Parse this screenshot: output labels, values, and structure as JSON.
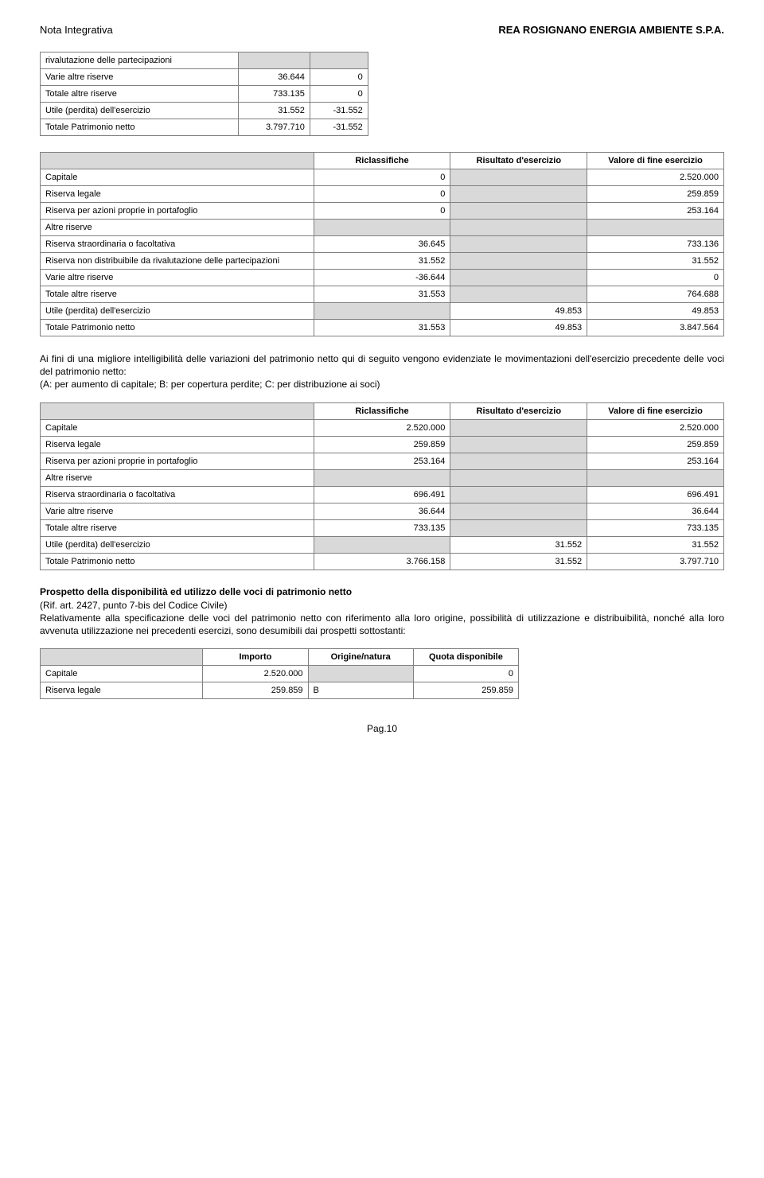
{
  "header": {
    "left": "Nota Integrativa",
    "right": "REA ROSIGNANO ENERGIA AMBIENTE S.P.A."
  },
  "table1": {
    "rows": [
      {
        "label": "rivalutazione delle partecipazioni",
        "c1": "",
        "c2": "",
        "grey1": true,
        "grey2": true
      },
      {
        "label": "Varie altre riserve",
        "c1": "36.644",
        "c2": "0"
      },
      {
        "label": "Totale altre riserve",
        "c1": "733.135",
        "c2": "0"
      },
      {
        "label": "Utile (perdita) dell'esercizio",
        "c1": "31.552",
        "c2": "-31.552"
      },
      {
        "label": "Totale Patrimonio netto",
        "c1": "3.797.710",
        "c2": "-31.552"
      }
    ]
  },
  "table2": {
    "headers": {
      "h1": "Riclassifiche",
      "h2": "Risultato d'esercizio",
      "h3": "Valore di fine esercizio"
    },
    "rows": [
      {
        "label": "Capitale",
        "c1": "0",
        "c2": "",
        "c3": "2.520.000",
        "grey2": true
      },
      {
        "label": "Riserva legale",
        "c1": "0",
        "c2": "",
        "c3": "259.859",
        "grey2": true
      },
      {
        "label": "Riserva per azioni proprie in portafoglio",
        "c1": "0",
        "c2": "",
        "c3": "253.164",
        "grey2": true
      },
      {
        "label": "Altre riserve",
        "c1": "",
        "c2": "",
        "c3": "",
        "grey1": true,
        "grey2": true,
        "grey3": true
      },
      {
        "label": "Riserva straordinaria o facoltativa",
        "c1": "36.645",
        "c2": "",
        "c3": "733.136",
        "grey2": true
      },
      {
        "label": "Riserva non distribuibile da rivalutazione delle partecipazioni",
        "c1": "31.552",
        "c2": "",
        "c3": "31.552",
        "grey2": true
      },
      {
        "label": "Varie altre riserve",
        "c1": "-36.644",
        "c2": "",
        "c3": "0",
        "grey2": true
      },
      {
        "label": "Totale altre riserve",
        "c1": "31.553",
        "c2": "",
        "c3": "764.688",
        "grey2": true
      },
      {
        "label": "Utile (perdita) dell'esercizio",
        "c1": "",
        "c2": "49.853",
        "c3": "49.853",
        "grey1": true
      },
      {
        "label": "Totale Patrimonio netto",
        "c1": "31.553",
        "c2": "49.853",
        "c3": "3.847.564"
      }
    ]
  },
  "para1": {
    "line1": "Ai fini di una migliore intelligibilità delle variazioni del patrimonio netto qui di seguito vengono evidenziate le movimentazioni dell'esercizio precedente delle voci del patrimonio netto:",
    "line2": "(A: per aumento di capitale; B: per copertura perdite; C: per distribuzione ai soci)"
  },
  "table3": {
    "headers": {
      "h1": "Riclassifiche",
      "h2": "Risultato d'esercizio",
      "h3": "Valore di fine esercizio"
    },
    "rows": [
      {
        "label": "Capitale",
        "c1": "2.520.000",
        "c2": "",
        "c3": "2.520.000",
        "grey2": true
      },
      {
        "label": "Riserva legale",
        "c1": "259.859",
        "c2": "",
        "c3": "259.859",
        "grey2": true
      },
      {
        "label": "Riserva per azioni proprie in portafoglio",
        "c1": "253.164",
        "c2": "",
        "c3": "253.164",
        "grey2": true
      },
      {
        "label": "Altre riserve",
        "c1": "",
        "c2": "",
        "c3": "",
        "grey1": true,
        "grey2": true,
        "grey3": true
      },
      {
        "label": "Riserva straordinaria o facoltativa",
        "c1": "696.491",
        "c2": "",
        "c3": "696.491",
        "grey2": true
      },
      {
        "label": "Varie altre riserve",
        "c1": "36.644",
        "c2": "",
        "c3": "36.644",
        "grey2": true
      },
      {
        "label": "Totale altre riserve",
        "c1": "733.135",
        "c2": "",
        "c3": "733.135",
        "grey2": true
      },
      {
        "label": "Utile (perdita) dell'esercizio",
        "c1": "",
        "c2": "31.552",
        "c3": "31.552",
        "grey1": true
      },
      {
        "label": "Totale Patrimonio netto",
        "c1": "3.766.158",
        "c2": "31.552",
        "c3": "3.797.710"
      }
    ]
  },
  "section": {
    "title": "Prospetto della disponibilità ed utilizzo delle voci di patrimonio netto",
    "sub": "(Rif. art. 2427, punto 7-bis del Codice Civile)",
    "body": "Relativamente alla specificazione delle voci del patrimonio netto con riferimento alla loro origine, possibilità di utilizzazione e distribuibilità, nonché alla loro avvenuta utilizzazione nei precedenti esercizi, sono desumibili dai prospetti sottostanti:"
  },
  "table4": {
    "headers": {
      "h1": "Importo",
      "h2": "Origine/natura",
      "h3": "Quota disponibile"
    },
    "rows": [
      {
        "label": "Capitale",
        "c1": "2.520.000",
        "c2": "",
        "c3": "0",
        "grey2": true
      },
      {
        "label": "Riserva legale",
        "c1": "259.859",
        "c2": "B",
        "c3": "259.859"
      }
    ]
  },
  "footer": "Pag.10",
  "colors": {
    "grey": "#d9d9d9",
    "border": "#808080",
    "text": "#000000",
    "bg": "#ffffff"
  },
  "col_widths": {
    "label": "40%",
    "data": "20%"
  }
}
